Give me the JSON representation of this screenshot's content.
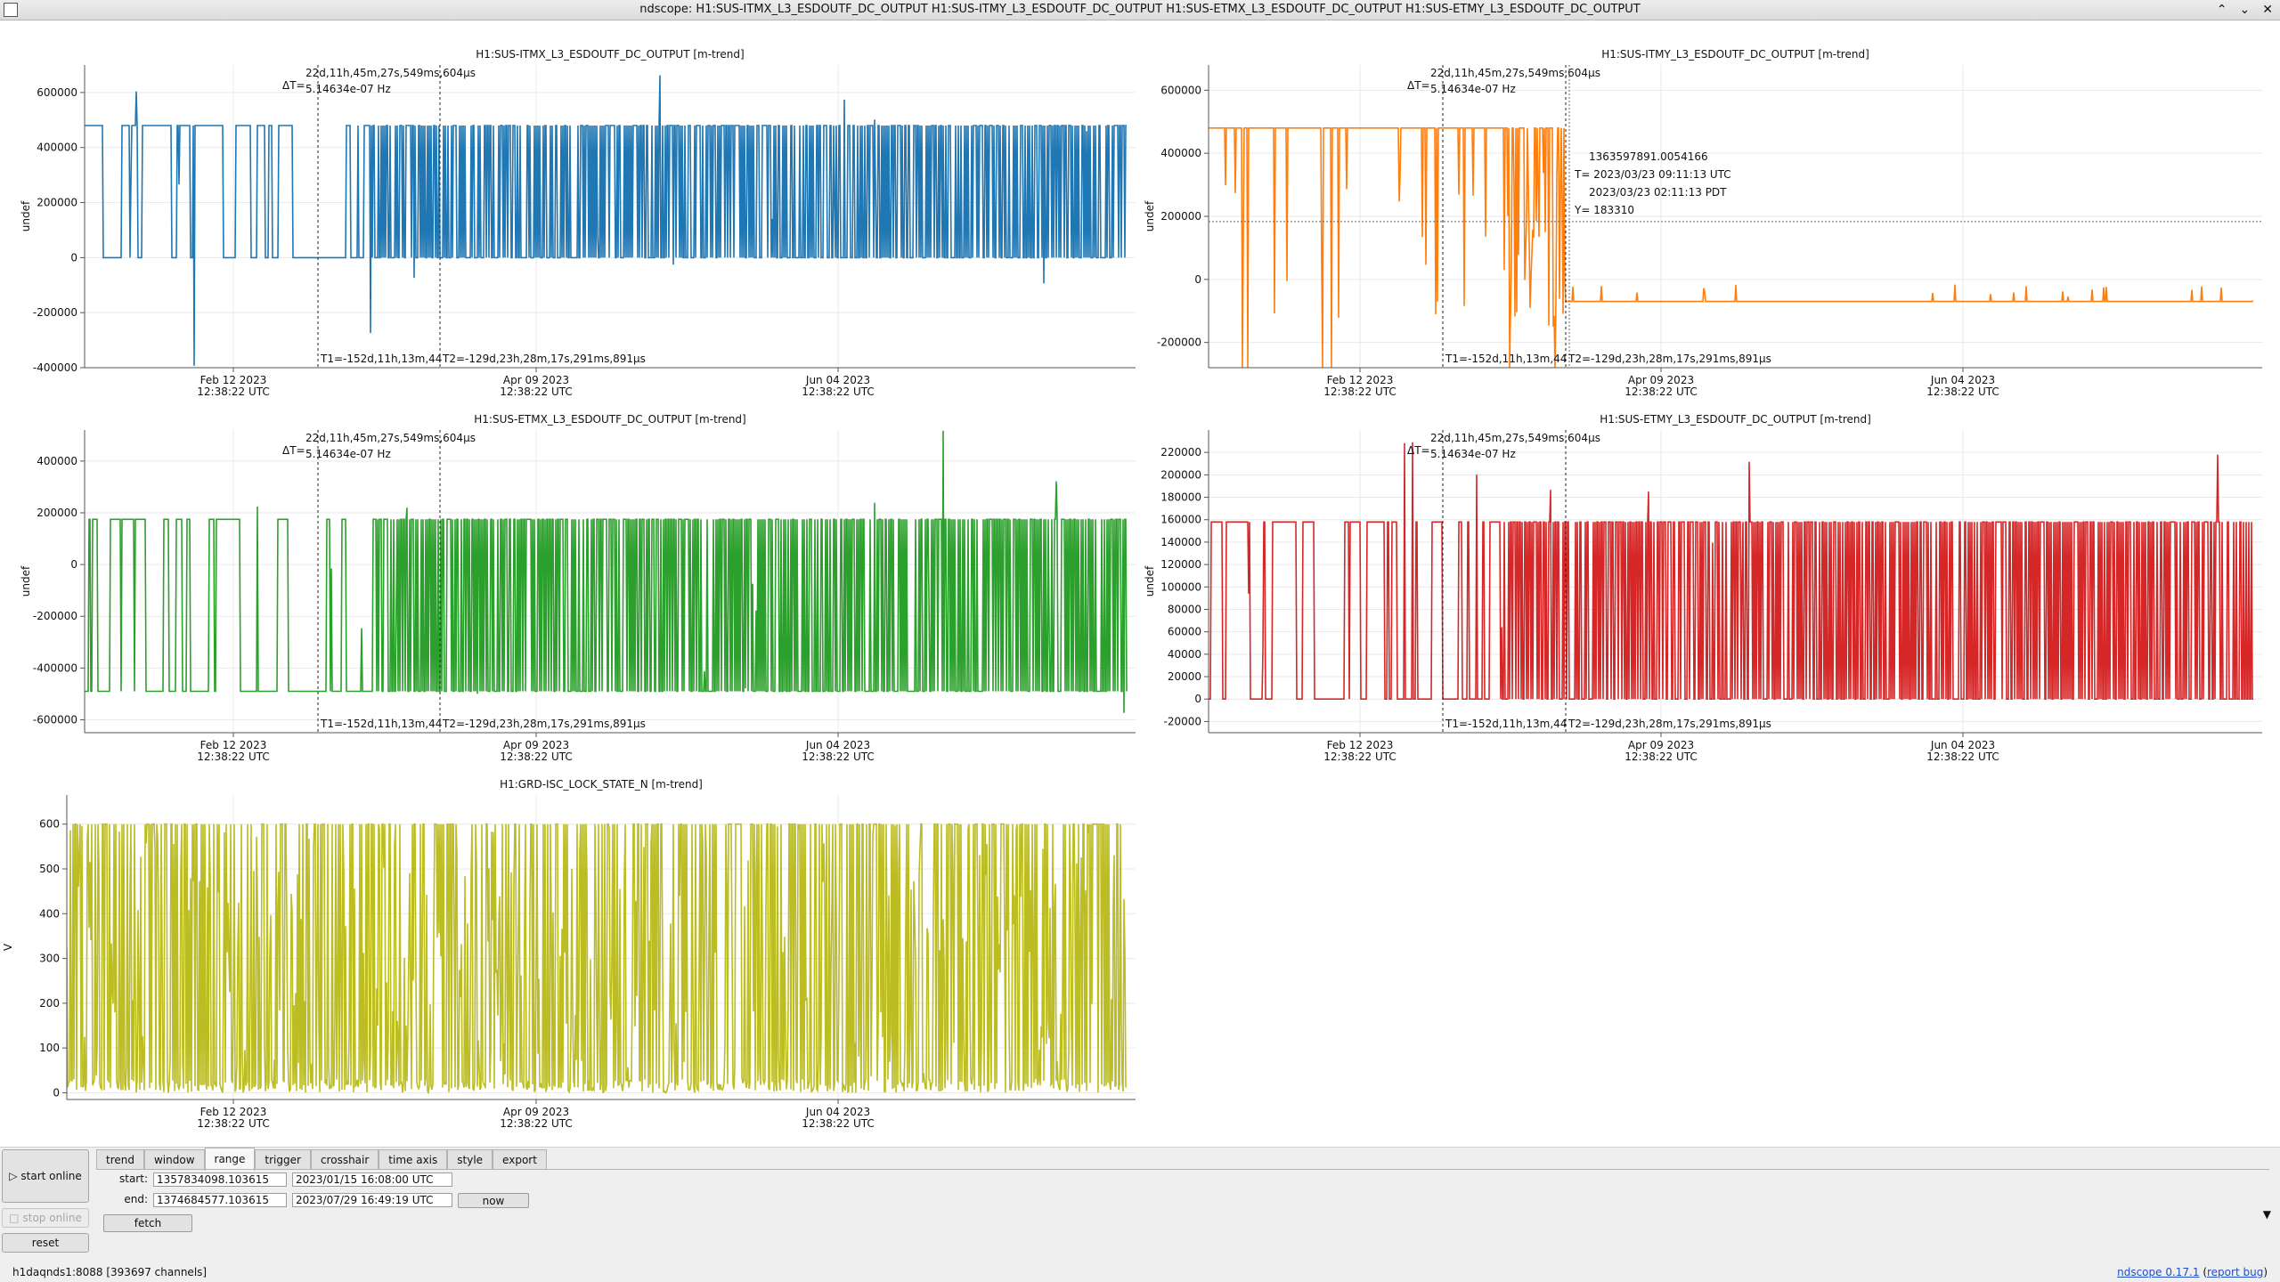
{
  "window": {
    "title": "ndscope: H1:SUS-ITMX_L3_ESDOUTF_DC_OUTPUT H1:SUS-ITMY_L3_ESDOUTF_DC_OUTPUT H1:SUS-ETMX_L3_ESDOUTF_DC_OUTPUT H1:SUS-ETMY_L3_ESDOUTF_DC_OUTPUT",
    "minimize_glyph": "⌃",
    "maximize_glyph": "⌄",
    "close_glyph": "✕"
  },
  "plots": [
    {
      "id": "itmx",
      "title": "H1:SUS-ITMX_L3_ESDOUTF_DC_OUTPUT [m-trend]",
      "ylabel": "undef",
      "color": "#1f77b4",
      "yticks": [
        "600000",
        "400000",
        "200000",
        "0",
        "-200000",
        "-400000"
      ],
      "xticks": [
        {
          "date": "Feb 12 2023",
          "time": "12:38:22 UTC"
        },
        {
          "date": "Apr 09 2023",
          "time": "12:38:22 UTC"
        },
        {
          "date": "Jun 04 2023",
          "time": "12:38:22 UTC"
        }
      ],
      "cursor": {
        "delta_label": "ΔT=",
        "delta_value": "22d,11h,45m,27s,549ms,604µs",
        "freq": "5.14634e-07 Hz",
        "t1": "T1=-152d,11h,13m,44",
        "t2": "T2=-129d,23h,28m,17s,291ms,891µs"
      }
    },
    {
      "id": "itmy",
      "title": "H1:SUS-ITMY_L3_ESDOUTF_DC_OUTPUT [m-trend]",
      "ylabel": "undef",
      "color": "#ff7f0e",
      "yticks": [
        "600000",
        "400000",
        "200000",
        "0",
        "-200000"
      ],
      "xticks": [
        {
          "date": "Feb 12 2023",
          "time": "12:38:22 UTC"
        },
        {
          "date": "Apr 09 2023",
          "time": "12:38:22 UTC"
        },
        {
          "date": "Jun 04 2023",
          "time": "12:38:22 UTC"
        }
      ],
      "cursor": {
        "delta_label": "ΔT=",
        "delta_value": "22d,11h,45m,27s,549ms,604µs",
        "freq": "5.14634e-07 Hz",
        "t1": "T1=-152d,11h,13m,44",
        "t2": "T2=-129d,23h,28m,17s,291ms,891µs"
      },
      "crosshair": {
        "gps": "1363597891.0054166",
        "utc": "T= 2023/03/23 09:11:13 UTC",
        "pdt": "2023/03/23 02:11:13 PDT",
        "y": "Y= 183310"
      }
    },
    {
      "id": "etmx",
      "title": "H1:SUS-ETMX_L3_ESDOUTF_DC_OUTPUT [m-trend]",
      "ylabel": "undef",
      "color": "#2ca02c",
      "yticks": [
        "400000",
        "200000",
        "0",
        "-200000",
        "-400000",
        "-600000"
      ],
      "xticks": [
        {
          "date": "Feb 12 2023",
          "time": "12:38:22 UTC"
        },
        {
          "date": "Apr 09 2023",
          "time": "12:38:22 UTC"
        },
        {
          "date": "Jun 04 2023",
          "time": "12:38:22 UTC"
        }
      ],
      "cursor": {
        "delta_label": "ΔT=",
        "delta_value": "22d,11h,45m,27s,549ms,604µs",
        "freq": "5.14634e-07 Hz",
        "t1": "T1=-152d,11h,13m,44",
        "t2": "T2=-129d,23h,28m,17s,291ms,891µs"
      }
    },
    {
      "id": "etmy",
      "title": "H1:SUS-ETMY_L3_ESDOUTF_DC_OUTPUT [m-trend]",
      "ylabel": "undef",
      "color": "#d62728",
      "yticks": [
        "220000",
        "200000",
        "180000",
        "160000",
        "140000",
        "120000",
        "100000",
        "80000",
        "60000",
        "40000",
        "20000",
        "0",
        "-20000"
      ],
      "xticks": [
        {
          "date": "Feb 12 2023",
          "time": "12:38:22 UTC"
        },
        {
          "date": "Apr 09 2023",
          "time": "12:38:22 UTC"
        },
        {
          "date": "Jun 04 2023",
          "time": "12:38:22 UTC"
        }
      ],
      "cursor": {
        "delta_label": "ΔT=",
        "delta_value": "22d,11h,45m,27s,549ms,604µs",
        "freq": "5.14634e-07 Hz",
        "t1": "T1=-152d,11h,13m,44",
        "t2": "T2=-129d,23h,28m,17s,291ms,891µs"
      }
    },
    {
      "id": "isc",
      "title": "H1:GRD-ISC_LOCK_STATE_N [m-trend]",
      "ylabel": "V",
      "color": "#bcbd22",
      "yticks": [
        "600",
        "500",
        "400",
        "300",
        "200",
        "100",
        "0"
      ],
      "xticks": [
        {
          "date": "Feb 12 2023",
          "time": "12:38:22 UTC"
        },
        {
          "date": "Apr 09 2023",
          "time": "12:38:22 UTC"
        },
        {
          "date": "Jun 04 2023",
          "time": "12:38:22 UTC"
        }
      ]
    }
  ],
  "controls": {
    "start_online": "start online",
    "stop_online": "stop online",
    "reset": "reset",
    "tabs": [
      "trend",
      "window",
      "range",
      "trigger",
      "crosshair",
      "time axis",
      "style",
      "export"
    ],
    "active_tab": "range",
    "range": {
      "start_label": "start:",
      "start_gps": "1357834098.103615",
      "start_utc": "2023/01/15 16:08:00 UTC",
      "end_label": "end:",
      "end_gps": "1374684577.103615",
      "end_utc": "2023/07/29 16:49:19 UTC",
      "now": "now",
      "fetch": "fetch"
    }
  },
  "status": {
    "server": "h1daqnds1:8088",
    "channels": "[393697 channels]",
    "version_link": "ndscope 0.17.1",
    "report_bug": "report bug"
  }
}
